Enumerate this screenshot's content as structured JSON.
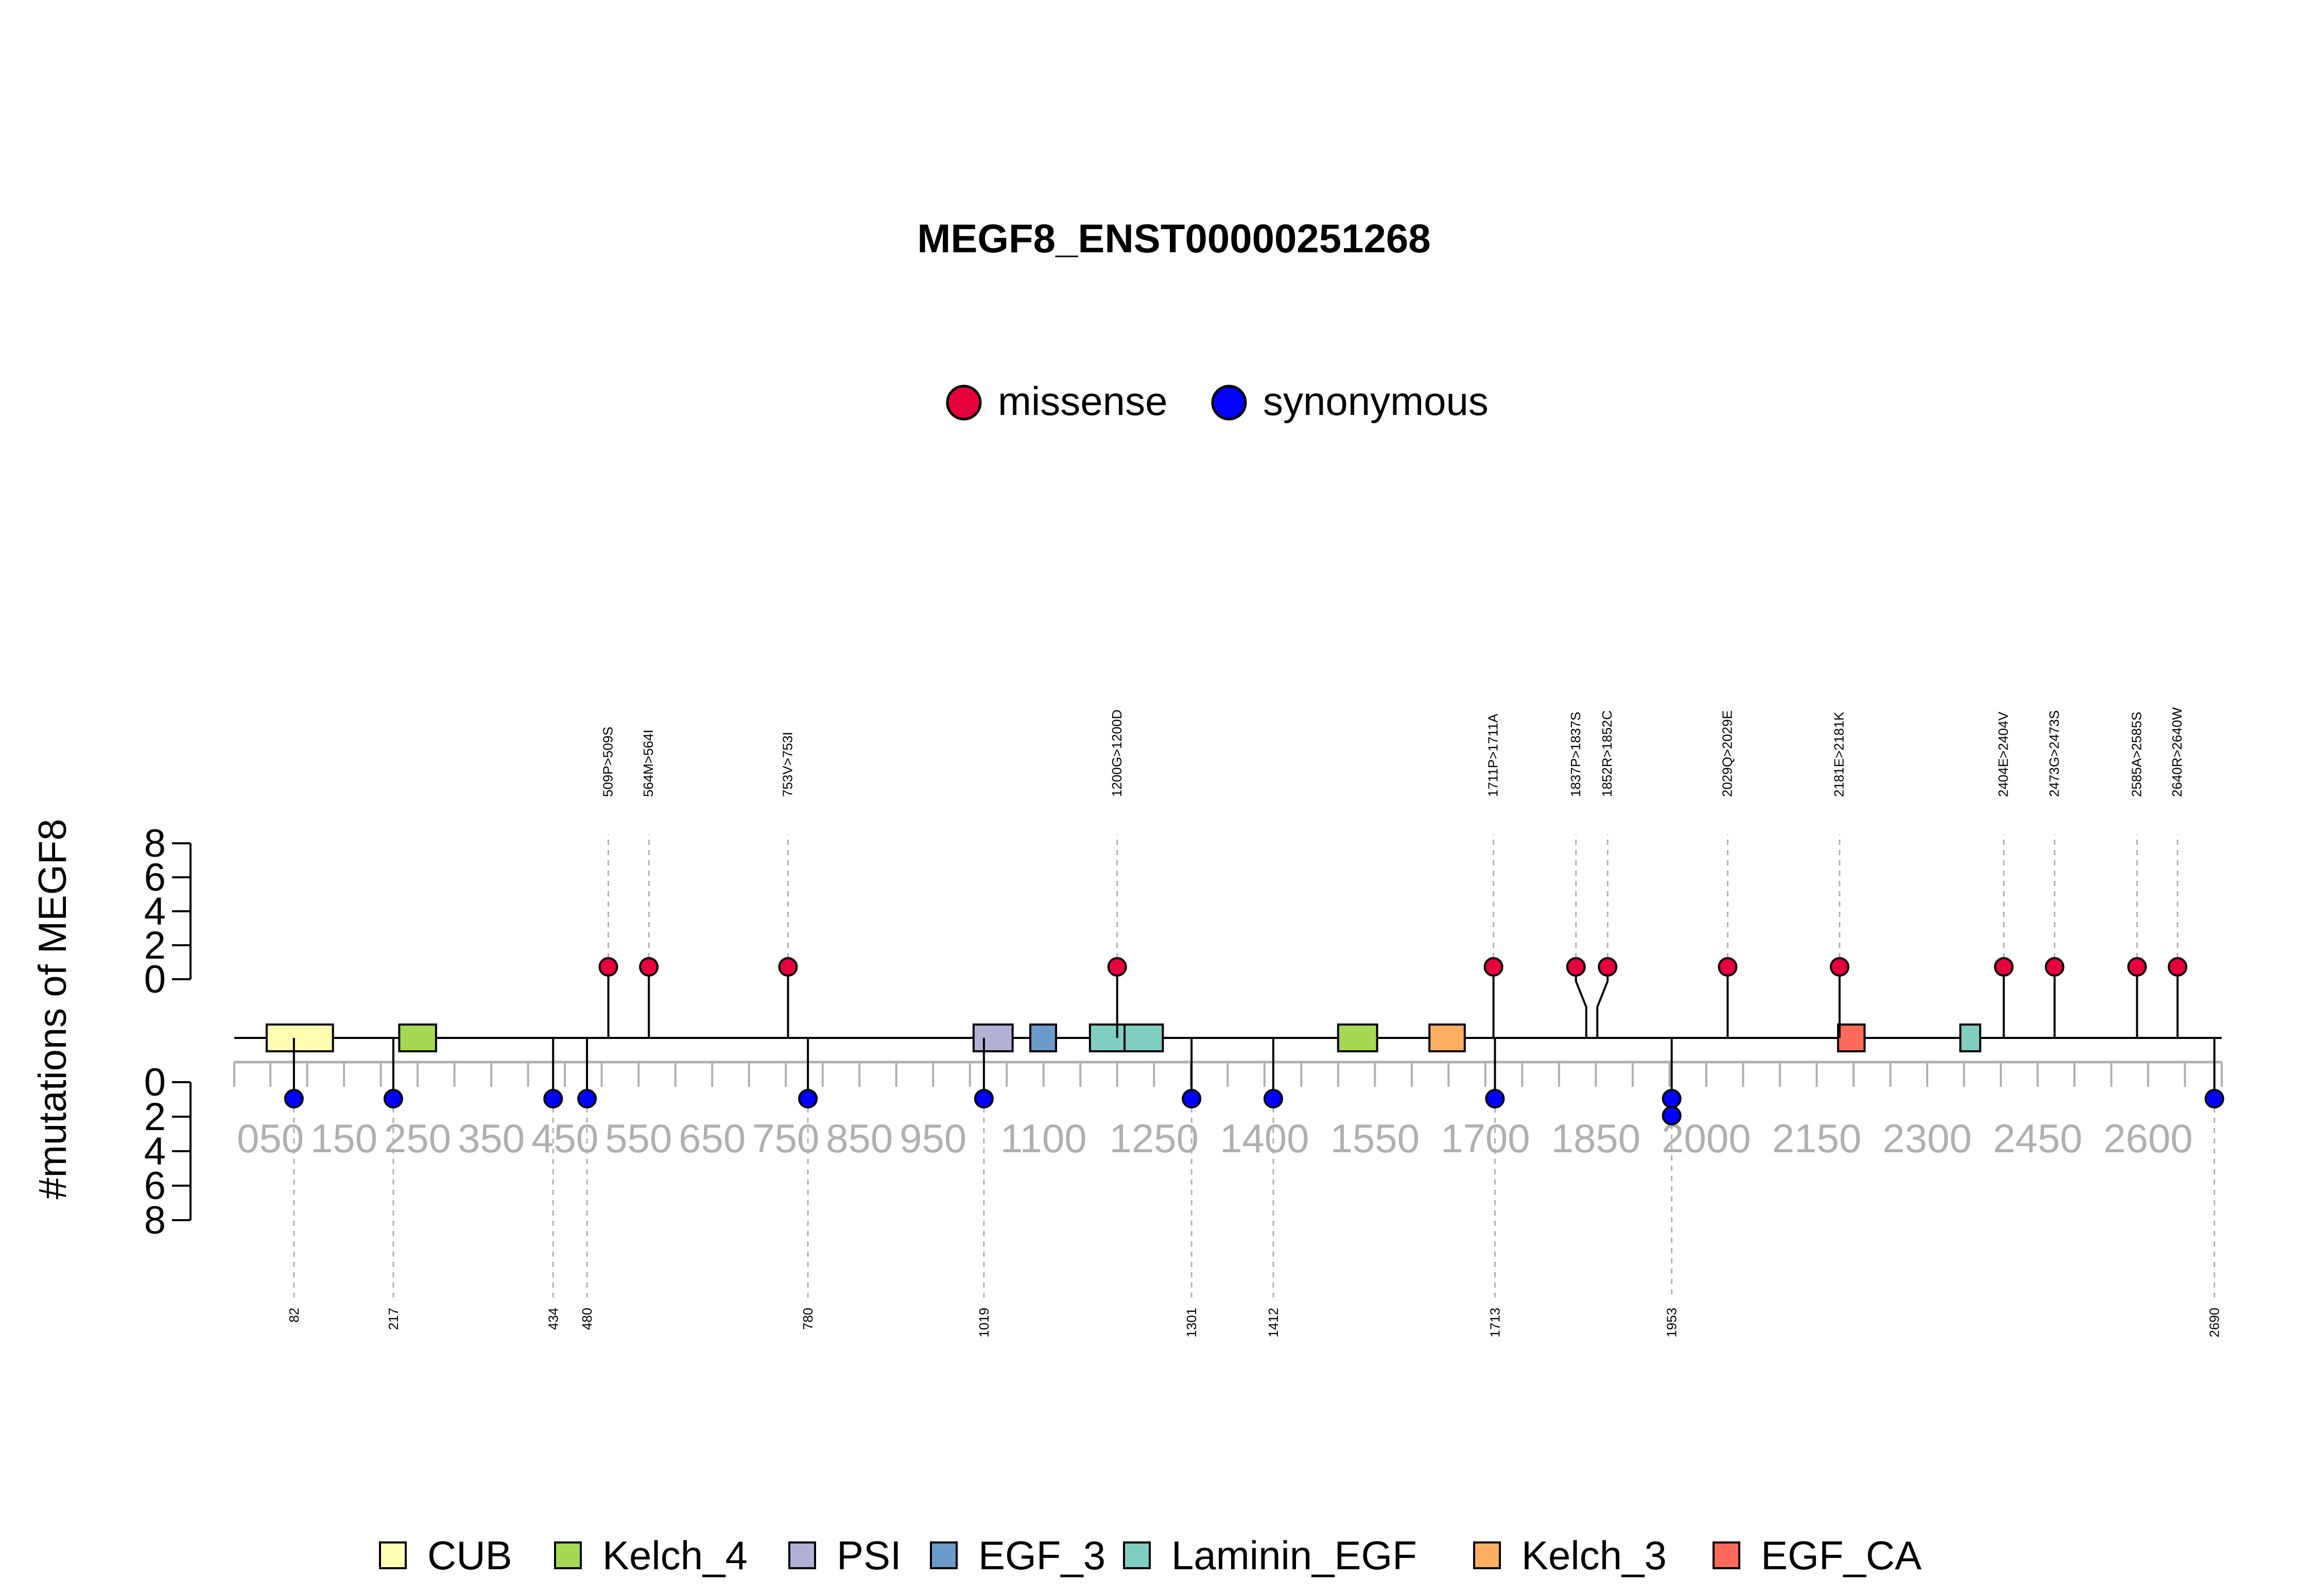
{
  "chart_data": {
    "type": "lollipop",
    "title": "MEGF8_ENST00000251268",
    "ylabel": "#mutations of MEGF8",
    "xlim": [
      1,
      2700
    ],
    "ylim_top": [
      0,
      8
    ],
    "ylim_bottom": [
      0,
      8
    ],
    "y_ticks": [
      "0",
      "2",
      "4",
      "6",
      "8"
    ],
    "x_tick_labels": [
      "050",
      "150",
      "250",
      "350",
      "450",
      "550",
      "650",
      "750",
      "850",
      "950",
      "1100",
      "1250",
      "1400",
      "1550",
      "1700",
      "1850",
      "2000",
      "2150",
      "2300",
      "2450",
      "2600"
    ],
    "mutation_legend": [
      {
        "label": "missense",
        "color": "#e6003c"
      },
      {
        "label": "synonymous",
        "color": "#0000ff"
      }
    ],
    "missense": [
      {
        "label": "509P>509S",
        "position": 509,
        "count": 1
      },
      {
        "label": "564M>564I",
        "position": 564,
        "count": 1
      },
      {
        "label": "753V>753I",
        "position": 753,
        "count": 1
      },
      {
        "label": "1200G>1200D",
        "position": 1200,
        "count": 1
      },
      {
        "label": "1711P>1711A",
        "position": 1711,
        "count": 1
      },
      {
        "label": "1837P>1837S",
        "position": 1837,
        "count": 1
      },
      {
        "label": "1852R>1852C",
        "position": 1852,
        "count": 1
      },
      {
        "label": "2029Q>2029E",
        "position": 2029,
        "count": 1
      },
      {
        "label": "2181E>2181K",
        "position": 2181,
        "count": 1
      },
      {
        "label": "2404E>2404V",
        "position": 2404,
        "count": 1
      },
      {
        "label": "2473G>2473S",
        "position": 2473,
        "count": 1
      },
      {
        "label": "2585A>2585S",
        "position": 2585,
        "count": 1
      },
      {
        "label": "2640R>2640W",
        "position": 2640,
        "count": 1
      }
    ],
    "synonymous": [
      {
        "label": "82",
        "position": 82,
        "count": 1
      },
      {
        "label": "217",
        "position": 217,
        "count": 1
      },
      {
        "label": "434",
        "position": 434,
        "count": 1
      },
      {
        "label": "480",
        "position": 480,
        "count": 1
      },
      {
        "label": "780",
        "position": 780,
        "count": 1
      },
      {
        "label": "1019",
        "position": 1019,
        "count": 1
      },
      {
        "label": "1301",
        "position": 1301,
        "count": 1
      },
      {
        "label": "1412",
        "position": 1412,
        "count": 1
      },
      {
        "label": "1713",
        "position": 1713,
        "count": 1
      },
      {
        "label": "1953",
        "position": 1953,
        "count": 2
      },
      {
        "label": "2690",
        "position": 2690,
        "count": 1
      }
    ],
    "domains": [
      {
        "name": "CUB",
        "start": 45,
        "end": 135
      },
      {
        "name": "Kelch_4",
        "start": 225,
        "end": 275
      },
      {
        "name": "PSI",
        "start": 1005,
        "end": 1058
      },
      {
        "name": "EGF_3",
        "start": 1082,
        "end": 1117
      },
      {
        "name": "Laminin_EGF",
        "start": 1163,
        "end": 1215
      },
      {
        "name": "Laminin_EGF",
        "start": 1210,
        "end": 1262
      },
      {
        "name": "Kelch_4",
        "start": 1500,
        "end": 1553
      },
      {
        "name": "Kelch_3",
        "start": 1624,
        "end": 1672
      },
      {
        "name": "EGF_CA",
        "start": 2179,
        "end": 2215
      },
      {
        "name": "Laminin_EGF",
        "start": 2345,
        "end": 2372
      }
    ],
    "domain_legend": [
      {
        "name": "CUB",
        "color": "#ffffb3"
      },
      {
        "name": "Kelch_4",
        "color": "#a6d854"
      },
      {
        "name": "PSI",
        "color": "#b3b0d6"
      },
      {
        "name": "EGF_3",
        "color": "#6a9bc9"
      },
      {
        "name": "Laminin_EGF",
        "color": "#80cdc1"
      },
      {
        "name": "Kelch_3",
        "color": "#fdae61"
      },
      {
        "name": "EGF_CA",
        "color": "#fb6a5a"
      }
    ]
  }
}
